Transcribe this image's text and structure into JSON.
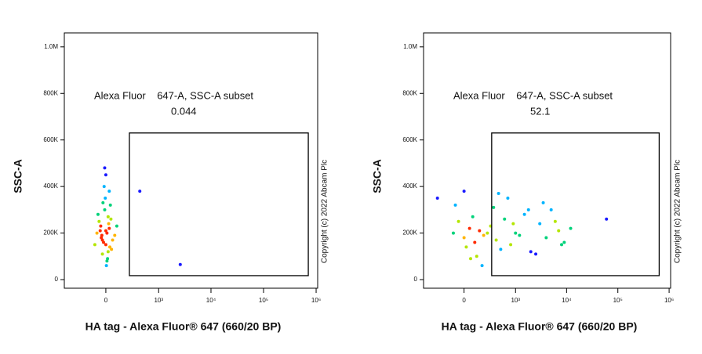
{
  "chart_data": [
    {
      "type": "scatter",
      "xscale": "biexponential",
      "xlabel": "HA tag - Alexa Fluor® 647 (660/20 BP)",
      "ylabel": "SSC-A",
      "annotation": "Copyright (c) 2022 Abcam Plc",
      "gate_label": "Alexa Fluor    647-A, SSC-A subset",
      "gate_value": "0.044",
      "gate": {
        "x": [
          245,
          710000
        ],
        "y": [
          17000,
          630000
        ]
      },
      "xlim": [
        -600,
        1070000
      ],
      "ylim": [
        -37000,
        1060000
      ],
      "xticks": [
        0,
        {
          "value": 1000,
          "label": "10³"
        },
        {
          "value": 10000,
          "label": "10⁴"
        },
        {
          "value": 100000,
          "label": "10⁵"
        },
        {
          "value": 1000000,
          "label": "10⁶"
        }
      ],
      "yticks": [
        0,
        {
          "value": 200000,
          "label": "200K"
        },
        {
          "value": 400000,
          "label": "400K"
        },
        {
          "value": 600000,
          "label": "600K"
        },
        {
          "value": 800000,
          "label": "800K"
        },
        {
          "value": 1000000,
          "label": "1.0M"
        }
      ],
      "density_colors": [
        "#1a1aff",
        "#00b4ff",
        "#00d27a",
        "#b4e600",
        "#ffb400",
        "#ff2a00"
      ],
      "x": [
        -40,
        10,
        -20,
        30,
        0,
        -60,
        50,
        -10,
        20,
        -30,
        40,
        -50,
        15,
        -5,
        25,
        -35,
        60,
        -70,
        5,
        -15,
        35,
        -45,
        0,
        20,
        -25,
        45,
        -80,
        80,
        -10,
        10,
        -100,
        100,
        30,
        -30,
        0,
        2600,
        420
      ],
      "values": [
        180000,
        200000,
        160000,
        220000,
        150000,
        250000,
        130000,
        300000,
        270000,
        110000,
        320000,
        210000,
        90000,
        350000,
        240000,
        190000,
        170000,
        280000,
        60000,
        400000,
        140000,
        230000,
        450000,
        120000,
        330000,
        260000,
        200000,
        190000,
        480000,
        80000,
        150000,
        230000,
        380000,
        170000,
        210000,
        65000,
        380000
      ]
    },
    {
      "type": "scatter",
      "xscale": "biexponential",
      "xlabel": "HA tag - Alexa Fluor® 647 (660/20 BP)",
      "ylabel": "SSC-A",
      "annotation": "Copyright (c) 2022 Abcam Plc",
      "gate_label": "Alexa Fluor    647-A, SSC-A subset",
      "gate_value": "52.1",
      "gate": {
        "x": [
          317,
          640000
        ],
        "y": [
          17000,
          630000
        ]
      },
      "xlim": [
        -600,
        1070000
      ],
      "ylim": [
        -37000,
        1060000
      ],
      "xticks": [
        0,
        {
          "value": 1000,
          "label": "10³"
        },
        {
          "value": 10000,
          "label": "10⁴"
        },
        {
          "value": 100000,
          "label": "10⁵"
        },
        {
          "value": 1000000,
          "label": "10⁶"
        }
      ],
      "yticks": [
        0,
        {
          "value": 200000,
          "label": "200K"
        },
        {
          "value": 400000,
          "label": "400K"
        },
        {
          "value": 600000,
          "label": "600K"
        },
        {
          "value": 800000,
          "label": "800K"
        },
        {
          "value": 1000000,
          "label": "1.0M"
        }
      ],
      "density_colors": [
        "#1a1aff",
        "#00b4ff",
        "#00d27a",
        "#b4e600",
        "#ffb400",
        "#ff2a00"
      ],
      "x": [
        -100,
        -50,
        0,
        50,
        100,
        150,
        200,
        300,
        400,
        600,
        800,
        1000,
        1500,
        2000,
        3000,
        4000,
        5000,
        7000,
        9000,
        12000,
        -80,
        20,
        80,
        120,
        250,
        350,
        500,
        700,
        900,
        1200,
        2500,
        3500,
        6000,
        8000,
        0,
        60,
        180,
        450,
        1800,
        60000,
        -300
      ],
      "values": [
        200000,
        250000,
        180000,
        220000,
        160000,
        210000,
        190000,
        230000,
        170000,
        260000,
        150000,
        200000,
        280000,
        120000,
        240000,
        180000,
        300000,
        210000,
        160000,
        220000,
        320000,
        140000,
        270000,
        100000,
        200000,
        310000,
        130000,
        350000,
        240000,
        190000,
        110000,
        330000,
        250000,
        150000,
        380000,
        90000,
        60000,
        370000,
        300000,
        260000,
        350000
      ]
    }
  ]
}
